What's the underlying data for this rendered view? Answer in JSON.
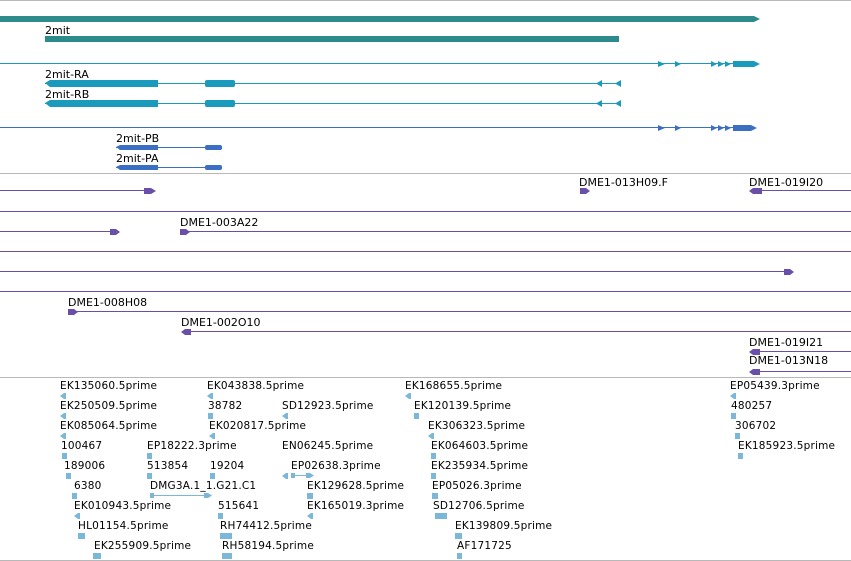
{
  "colors": {
    "gene_teal": "#2e8b8b",
    "transcript_cyan": "#1a9bbd",
    "transcript_blue": "#3a6fc4",
    "clone_purple": "#6a4fa8",
    "est_lightblue": "#7ab7d9",
    "divider": "#b8b8b8"
  },
  "gene_labels": {
    "gene": "2mit",
    "tr_ra": "2mit-RA",
    "tr_rb": "2mit-RB",
    "tr_pb": "2mit-PB",
    "tr_pa": "2mit-PA"
  },
  "clone_labels": {
    "c1": "DME1-013H09.F",
    "c2": "DME1-019I20",
    "c3": "DME1-003A22",
    "c4": "DME1-008H08",
    "c5": "DME1-002O10",
    "c6": "DME1-019I21",
    "c7": "DME1-013N18"
  },
  "est_labels": {
    "e01": "EK135060.5prime",
    "e02": "EK250509.5prime",
    "e03": "EK085064.5prime",
    "e04": "100467",
    "e05": "189006",
    "e06": "6380",
    "e07": "EK010943.5prime",
    "e08": "HL01154.5prime",
    "e09": "EK255909.5prime",
    "e10": "EK043838.5prime",
    "e11": "38782",
    "e12": "EK020817.5prime",
    "e13": "EP18222.3prime",
    "e14": "513854",
    "e15": "19204",
    "e16": "DMG3A.1_1.G21.C1",
    "e17": "515641",
    "e18": "RH74412.5prime",
    "e19": "RH58194.5prime",
    "e20": "SD12923.5prime",
    "e21": "EN06245.5prime",
    "e22": "EP02638.3prime",
    "e23": "EK129628.5prime",
    "e24": "EK165019.3prime",
    "e25": "EK168655.5prime",
    "e26": "EK120139.5prime",
    "e27": "EK306323.5prime",
    "e28": "EK064603.5prime",
    "e29": "EK235934.5prime",
    "e30": "EP05026.3prime",
    "e31": "SD12706.5prime",
    "e32": "EK139809.5prime",
    "e33": "AF171725",
    "e34": "EP05439.3prime",
    "e35": "480257",
    "e36": "306702",
    "e37": "EK185923.5prime"
  }
}
